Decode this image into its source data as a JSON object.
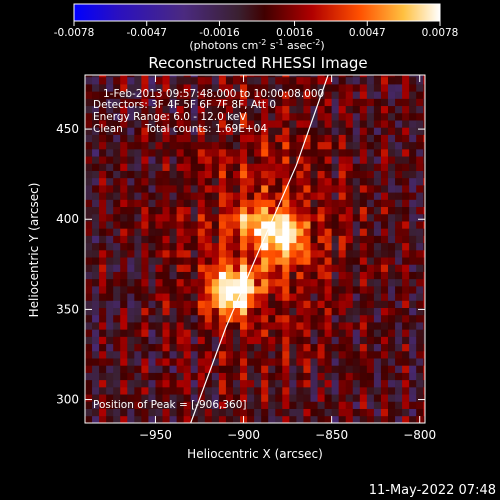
{
  "colorbar": {
    "ticks": [
      "-0.0078",
      "-0.0047",
      "-0.0016",
      "0.0016",
      "0.0047",
      "0.0078"
    ],
    "range": [
      -0.0078,
      0.0078
    ],
    "unit_prefix": "(photons cm",
    "unit_exp1": "-2",
    "unit_mid": " s",
    "unit_exp2": "-1",
    "unit_mid2": " asec",
    "unit_exp3": "-2",
    "unit_suffix": ")",
    "colors": [
      "#0000ff",
      "#3a00a0",
      "#4b1f78",
      "#3a1f2e",
      "#5a0000",
      "#a00000",
      "#e02000",
      "#ff8000",
      "#ffe060",
      "#ffffff"
    ]
  },
  "annotation": {
    "line1": "1-Feb-2013 09:57:48.000 to 10:00:08.000",
    "line2": "Detectors: 3F 4F 5F 6F 7F 8F, Att 0",
    "line3": "Energy Range: 6.0 - 12.0 keV",
    "line4_method": "Clean",
    "line4_counts": "Total counts: 1.69E+04",
    "peak": "Position of Peak = [-906,360]"
  },
  "footer": {
    "timestamp": "11-May-2022 07:48"
  },
  "chart_data": {
    "type": "heatmap",
    "title": "Reconstructed RHESSI Image",
    "xlabel": "Heliocentric X (arcsec)",
    "ylabel": "Heliocentric Y (arcsec)",
    "xlim": [
      -990,
      -797
    ],
    "ylim": [
      287,
      480
    ],
    "x_ticks": [
      -950,
      -900,
      -850,
      -800
    ],
    "y_ticks": [
      300,
      350,
      400,
      450
    ],
    "x_tick_labels": [
      "−950",
      "−900",
      "−850",
      "−800"
    ],
    "y_tick_labels": [
      "300",
      "350",
      "400",
      "450"
    ],
    "peaks": [
      {
        "x": -906,
        "y": 360,
        "value": 0.0078
      },
      {
        "x": -877,
        "y": 390,
        "value": 0.0056
      },
      {
        "x": -893,
        "y": 396,
        "value": 0.0035
      }
    ],
    "limb_curve": [
      [
        -930,
        287
      ],
      [
        -910,
        340
      ],
      [
        -888,
        390
      ],
      [
        -870,
        430
      ],
      [
        -852,
        480
      ]
    ]
  }
}
